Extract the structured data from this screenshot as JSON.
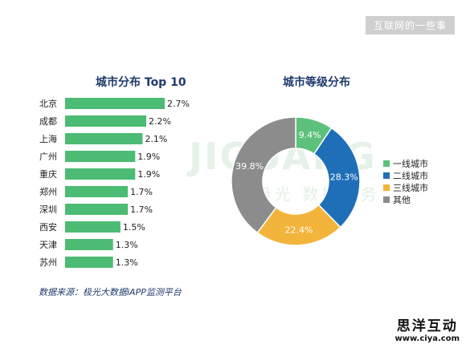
{
  "badge_text": "互联网的一些事",
  "watermark": {
    "brand": "JIGUANG",
    "sub": "极光 数据服务"
  },
  "source_text": "数据来源：极光大数据iAPP监测平台",
  "logo": {
    "name": "思洋互动",
    "url": "www.ciya.com"
  },
  "colors": {
    "bar": "#4cbb73",
    "tier1": "#5cc17a",
    "tier2": "#1f6fb8",
    "tier3": "#f2b43a",
    "other": "#8c8c8c"
  },
  "chart_data": [
    {
      "type": "bar",
      "orientation": "horizontal",
      "title": "城市分布 Top 10",
      "categories": [
        "北京",
        "成都",
        "上海",
        "广州",
        "重庆",
        "郑州",
        "深圳",
        "西安",
        "天津",
        "苏州"
      ],
      "values": [
        2.7,
        2.2,
        2.1,
        1.9,
        1.9,
        1.7,
        1.7,
        1.5,
        1.3,
        1.3
      ],
      "value_labels": [
        "2.7%",
        "2.2%",
        "2.1%",
        "1.9%",
        "1.9%",
        "1.7%",
        "1.7%",
        "1.5%",
        "1.3%",
        "1.3%"
      ],
      "unit": "%"
    },
    {
      "type": "pie",
      "style": "donut",
      "title": "城市等级分布",
      "categories": [
        "一线城市",
        "二线城市",
        "三线城市",
        "其他"
      ],
      "values": [
        9.4,
        28.3,
        22.4,
        39.8
      ],
      "value_labels": [
        "9.4%",
        "28.3%",
        "22.4%",
        "39.8%"
      ],
      "colors": [
        "#5cc17a",
        "#1f6fb8",
        "#f2b43a",
        "#8c8c8c"
      ],
      "legend_position": "right"
    }
  ]
}
